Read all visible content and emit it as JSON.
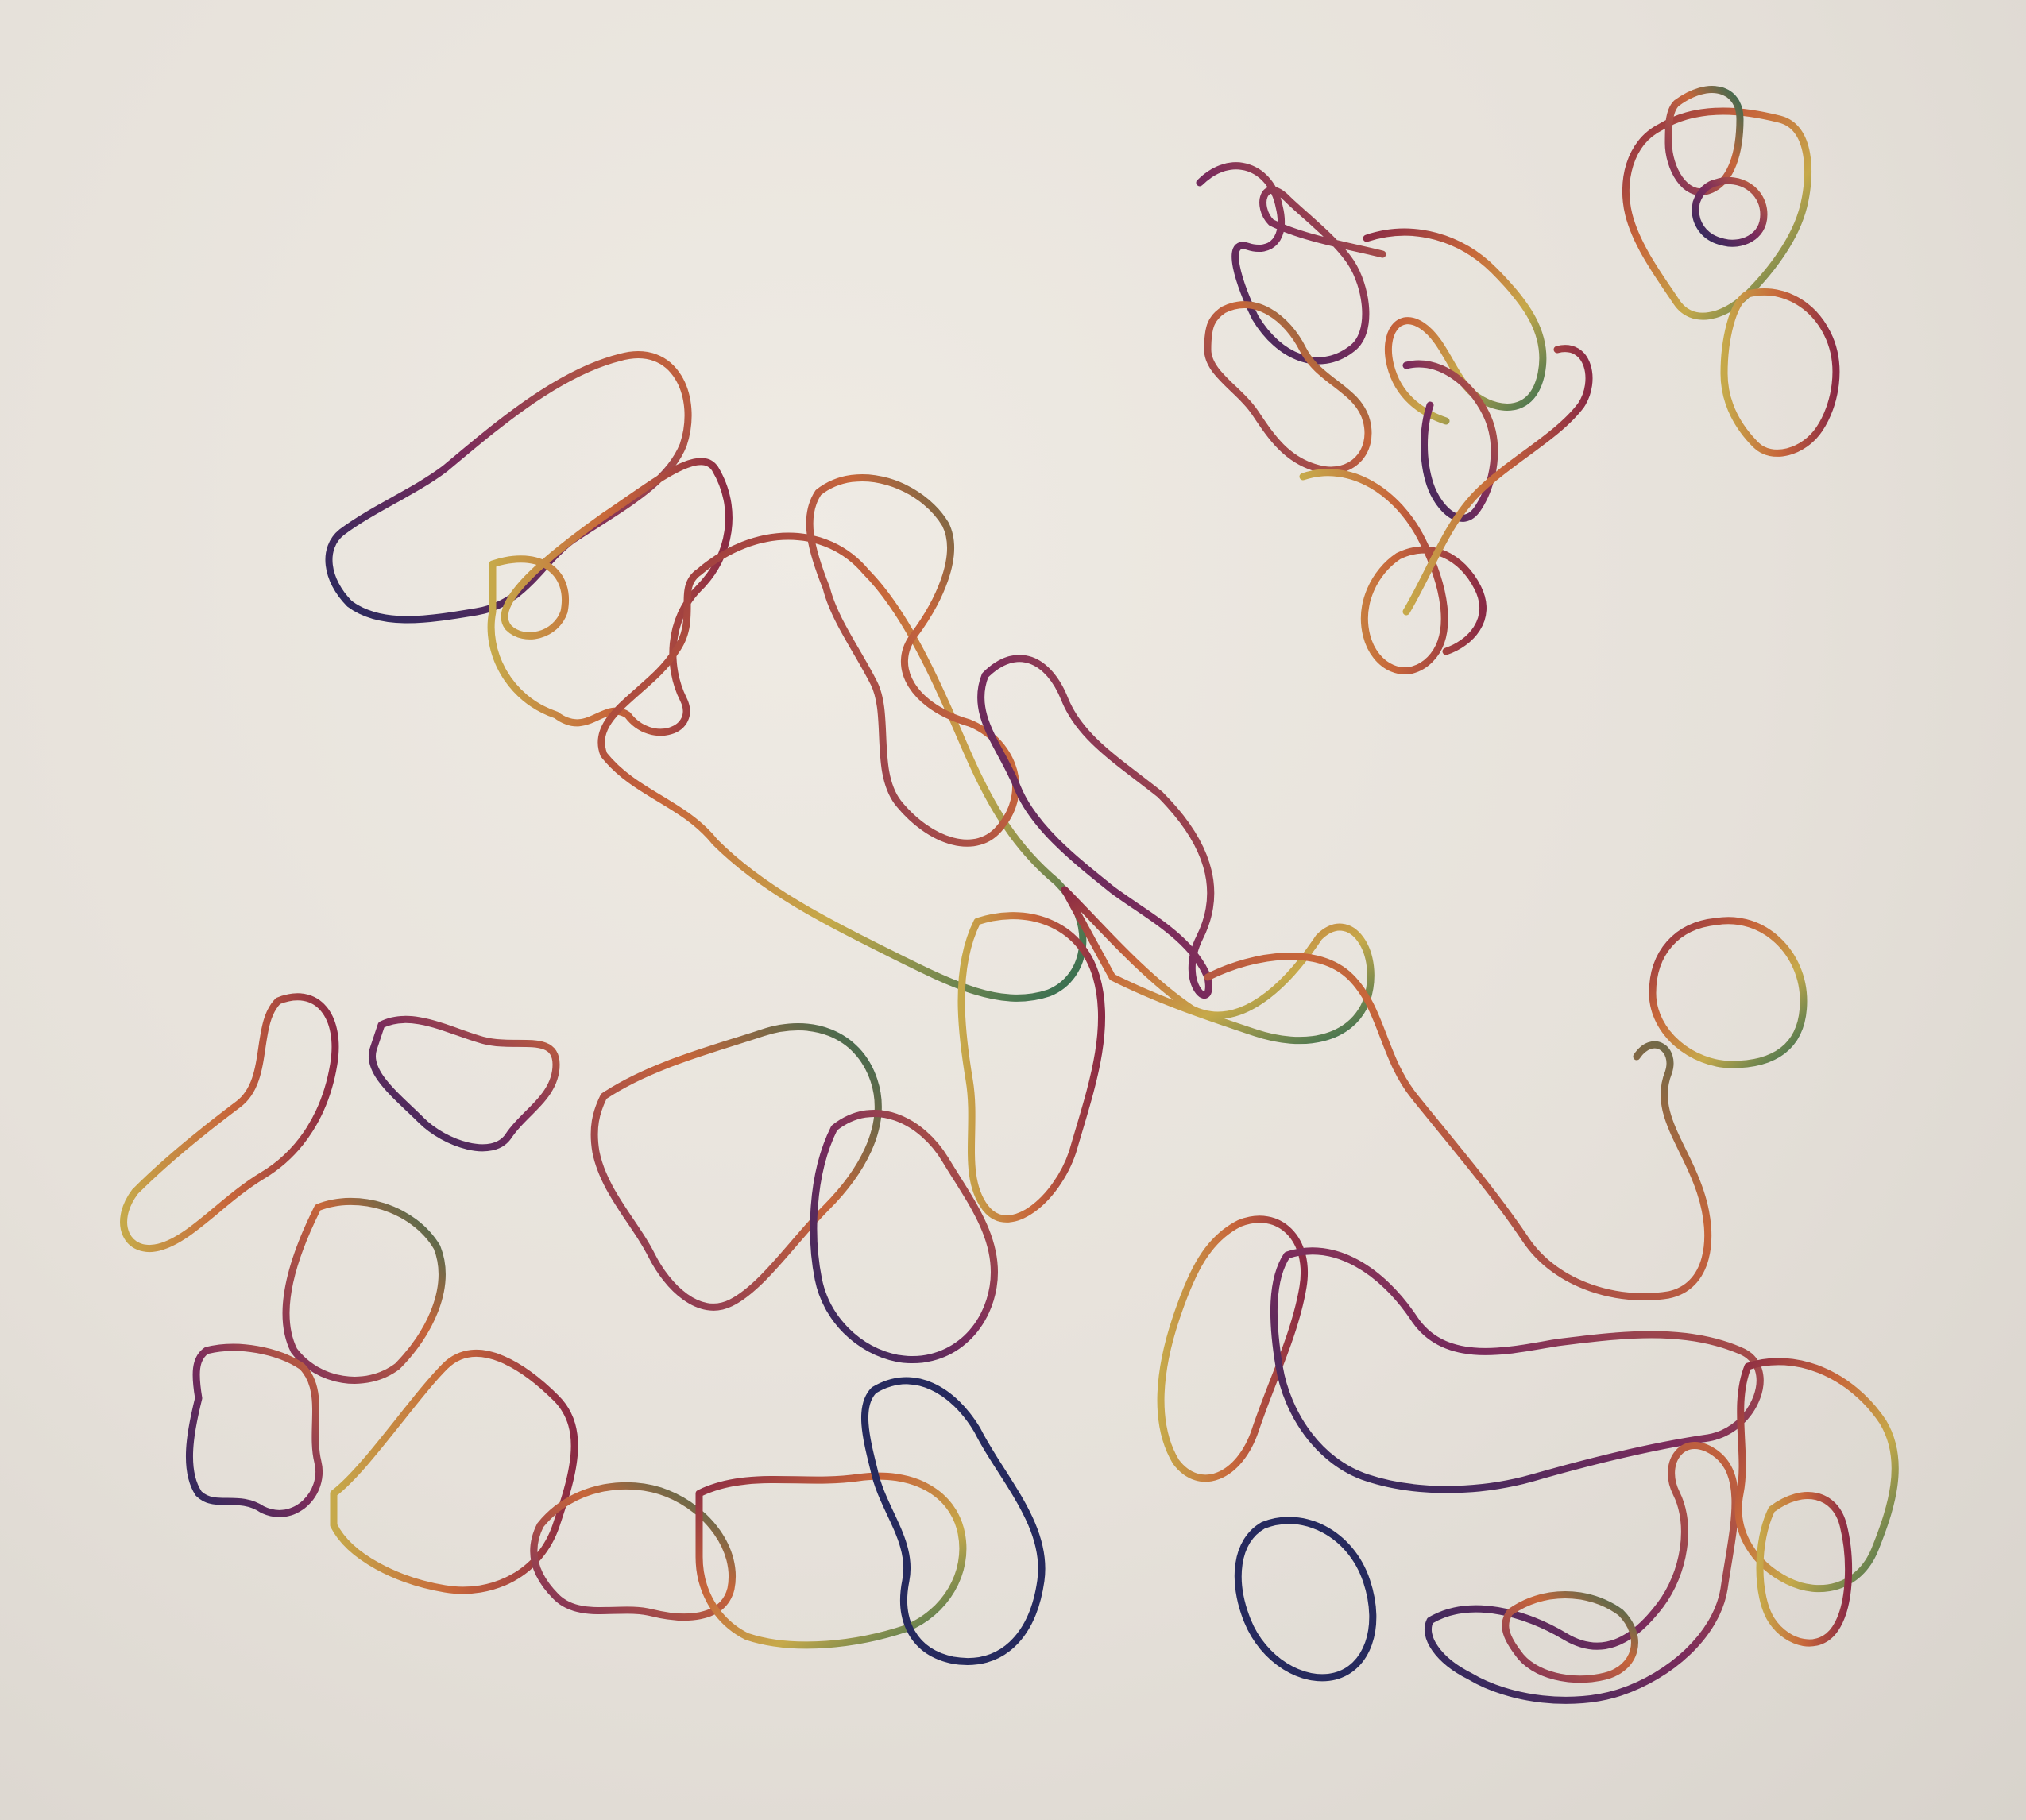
{
  "artwork": {
    "description_tags": [
      "drawing-on-paper"
    ],
    "colors": {
      "paper": "#e8e3dc",
      "crimson": "#8a2a45",
      "orange": "#c7663a",
      "yellow": "#c6a94a",
      "green": "#2f6b52",
      "navy": "#262a5e",
      "magenta": "#7a2b5c"
    }
  }
}
